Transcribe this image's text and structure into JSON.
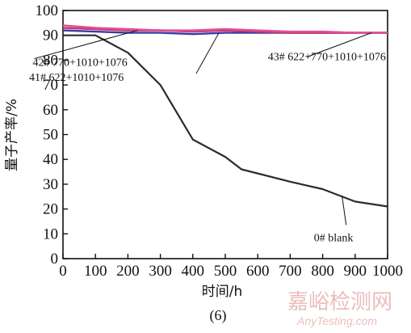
{
  "chart_data": {
    "type": "line",
    "panel_label": "(6)",
    "xlabel": "时间/h",
    "ylabel": "量子产率/%",
    "xlim": [
      0,
      1000
    ],
    "ylim": [
      0,
      100
    ],
    "xticks": [
      0,
      100,
      200,
      300,
      400,
      500,
      600,
      700,
      800,
      900,
      1000
    ],
    "yticks": [
      0,
      10,
      20,
      30,
      40,
      50,
      60,
      70,
      80,
      90,
      100
    ],
    "grid": false,
    "series": [
      {
        "name": "0# blank",
        "color": "#2b2b2b",
        "x": [
          0,
          100,
          200,
          300,
          400,
          500,
          550,
          700,
          800,
          900,
          1000
        ],
        "y": [
          90,
          90,
          83,
          70,
          48,
          41,
          36,
          31,
          28,
          23,
          21
        ]
      },
      {
        "name": "41# 622+1010+1076",
        "color": "#3a3aa8",
        "x": [
          0,
          100,
          200,
          300,
          400,
          500,
          600,
          700,
          800,
          900,
          1000
        ],
        "y": [
          92,
          91.5,
          91,
          91,
          90.5,
          91,
          91,
          91,
          91,
          91,
          91
        ]
      },
      {
        "name": "42# 770+1010+1076",
        "color": "#c23a6e",
        "x": [
          0,
          100,
          200,
          300,
          400,
          500,
          600,
          700,
          800,
          900,
          1000
        ],
        "y": [
          93,
          92.5,
          92,
          92,
          91.5,
          92,
          91.5,
          91,
          91,
          91,
          91
        ]
      },
      {
        "name": "43# 622+770+1010+1076",
        "color": "#e0509a",
        "x": [
          0,
          100,
          200,
          300,
          400,
          500,
          600,
          700,
          800,
          900,
          1000
        ],
        "y": [
          94,
          93,
          92.5,
          92,
          92,
          92.5,
          92,
          91.5,
          91.5,
          91,
          91
        ]
      }
    ],
    "annotations": [
      {
        "text": "42# 770+1010+1076",
        "series": 2,
        "at_x": 230
      },
      {
        "text": "41# 622+1010+1076",
        "series": 1,
        "at_x": 480
      },
      {
        "text": "43# 622+770+1010+1076",
        "series": 3,
        "at_x": 950
      },
      {
        "text": "0# blank",
        "series": 0,
        "at_x": 860
      }
    ]
  },
  "watermark": {
    "cn": "嘉峪检测网",
    "en": "AnyTesting.com"
  }
}
